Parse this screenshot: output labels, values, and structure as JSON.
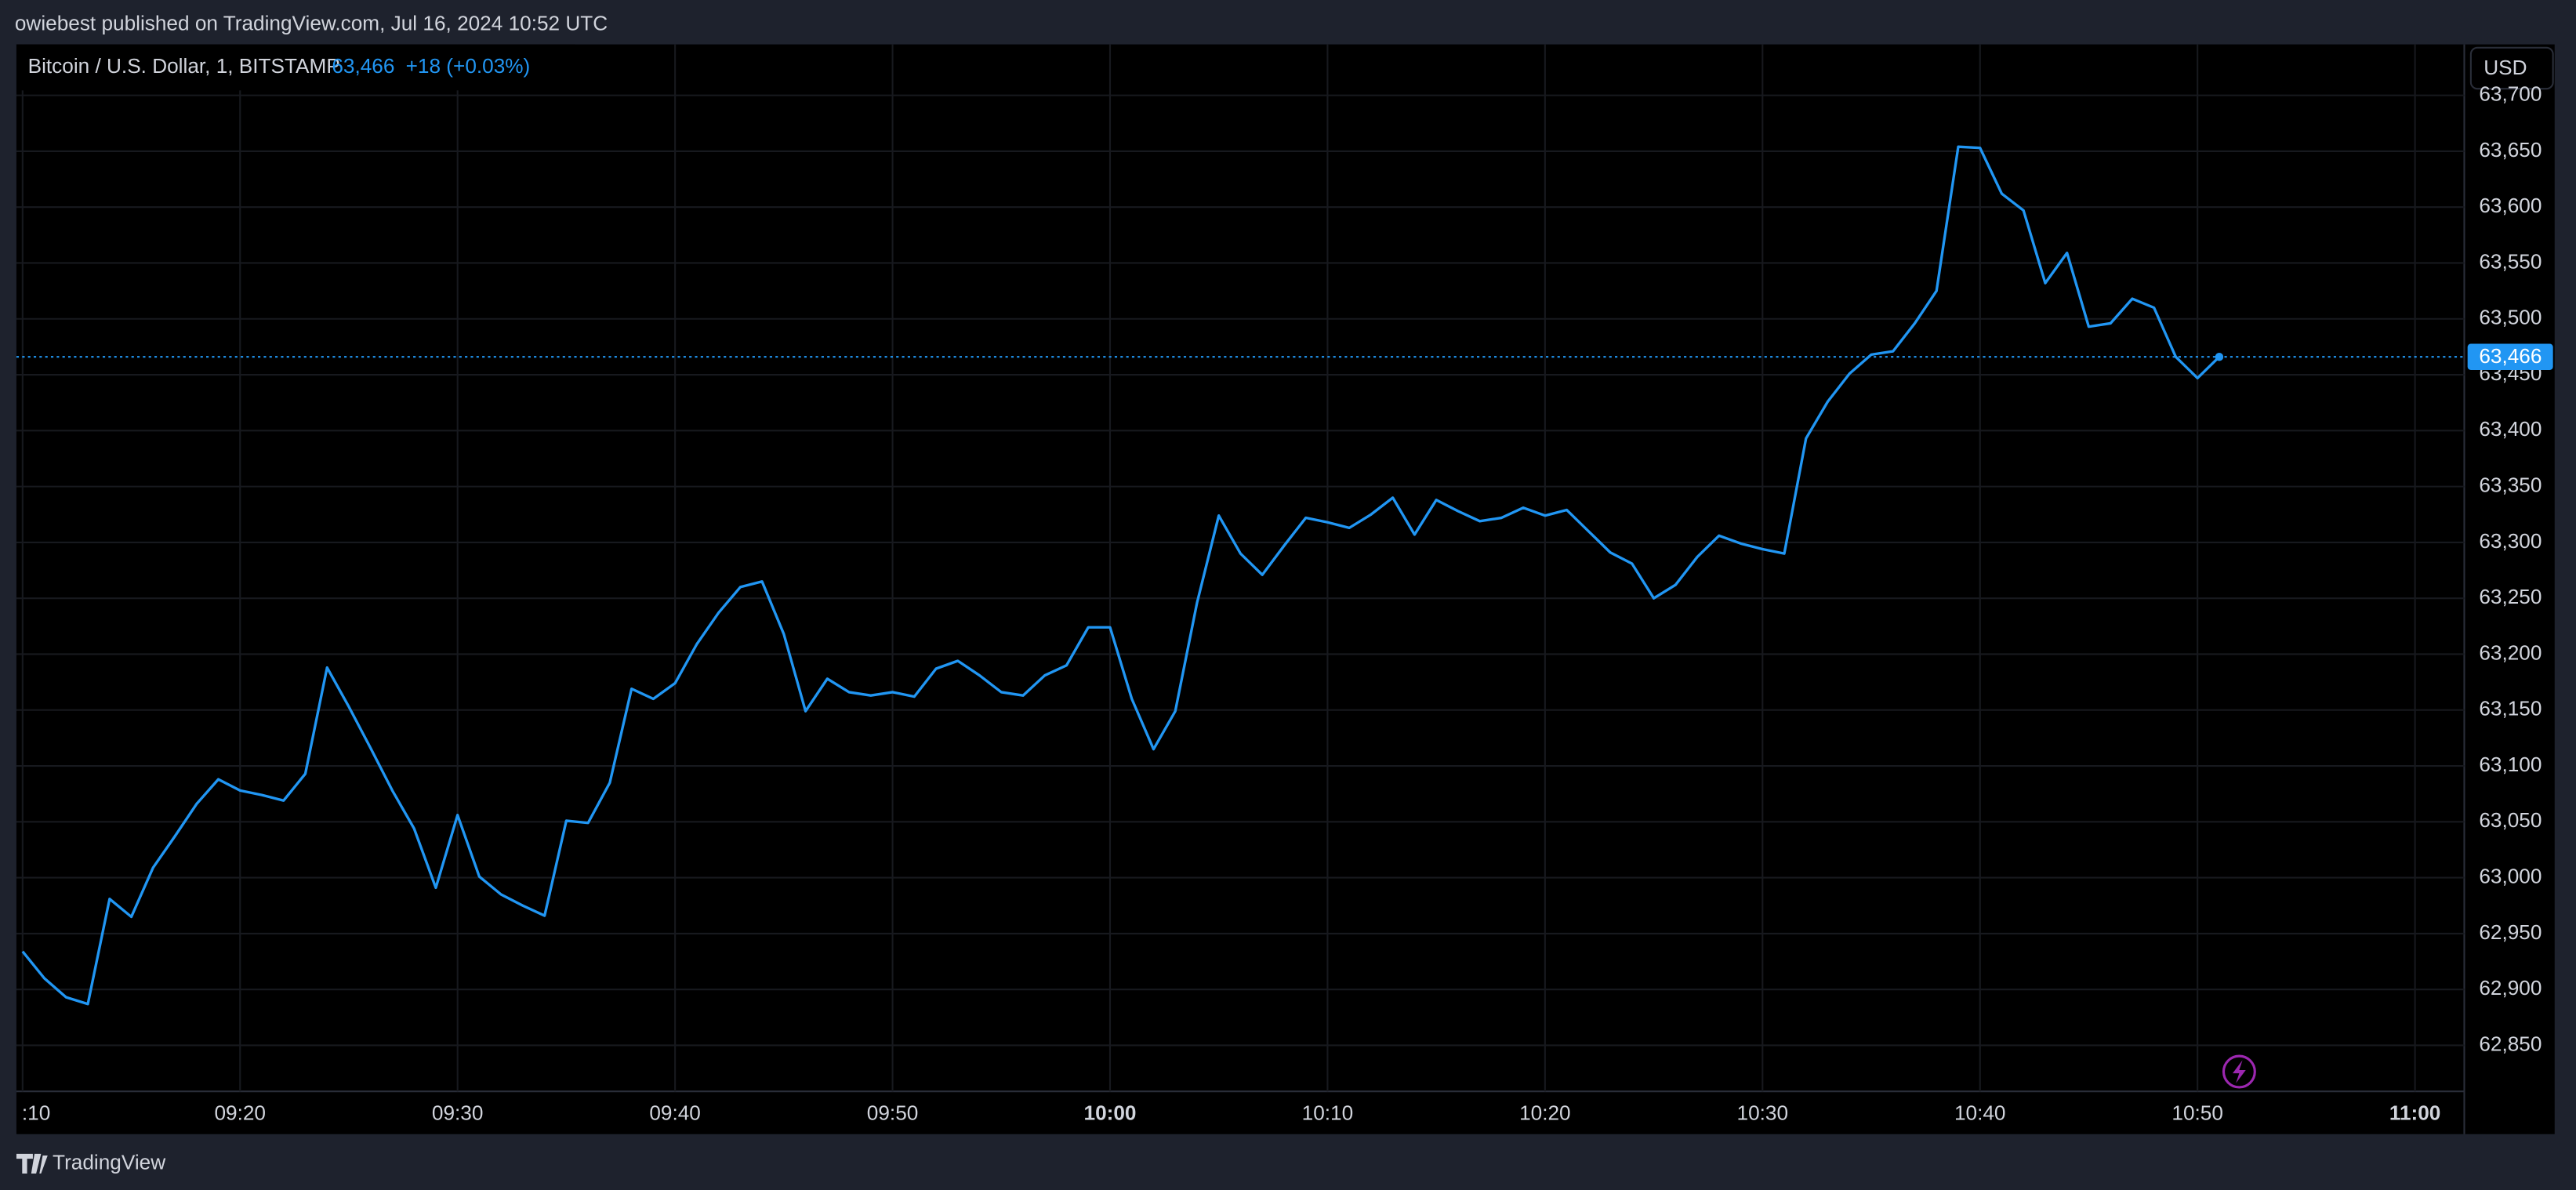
{
  "header": {
    "text": "owiebest published on TradingView.com, Jul 16, 2024 10:52 UTC"
  },
  "footer": {
    "brand": "TradingView"
  },
  "currency_button": "USD",
  "chart_data": {
    "type": "line",
    "symbol": "Bitcoin / U.S. Dollar, 1, BITSTAMP",
    "last_price": {
      "value": 63466,
      "label": "63,466"
    },
    "change": "+18 (+0.03%)",
    "x": [
      "09:10",
      "09:11",
      "09:12",
      "09:13",
      "09:14",
      "09:15",
      "09:16",
      "09:17",
      "09:18",
      "09:19",
      "09:20",
      "09:21",
      "09:22",
      "09:23",
      "09:24",
      "09:25",
      "09:26",
      "09:27",
      "09:28",
      "09:29",
      "09:30",
      "09:31",
      "09:32",
      "09:33",
      "09:34",
      "09:35",
      "09:36",
      "09:37",
      "09:38",
      "09:39",
      "09:40",
      "09:41",
      "09:42",
      "09:43",
      "09:44",
      "09:45",
      "09:46",
      "09:47",
      "09:48",
      "09:49",
      "09:50",
      "09:51",
      "09:52",
      "09:53",
      "09:54",
      "09:55",
      "09:56",
      "09:57",
      "09:58",
      "09:59",
      "10:00",
      "10:01",
      "10:02",
      "10:03",
      "10:04",
      "10:05",
      "10:06",
      "10:07",
      "10:08",
      "10:09",
      "10:10",
      "10:11",
      "10:12",
      "10:13",
      "10:14",
      "10:15",
      "10:16",
      "10:17",
      "10:18",
      "10:19",
      "10:20",
      "10:21",
      "10:22",
      "10:23",
      "10:24",
      "10:25",
      "10:26",
      "10:27",
      "10:28",
      "10:29",
      "10:30",
      "10:31",
      "10:32",
      "10:33",
      "10:34",
      "10:35",
      "10:36",
      "10:37",
      "10:38",
      "10:39",
      "10:40",
      "10:41",
      "10:42",
      "10:43",
      "10:44",
      "10:45",
      "10:46",
      "10:47",
      "10:48",
      "10:49",
      "10:50",
      "10:51"
    ],
    "series": [
      {
        "name": "BTCUSD",
        "color": "#2196f3",
        "values": [
          62934,
          62910,
          62893,
          62887,
          62981,
          62965,
          63009,
          63037,
          63066,
          63088,
          63078,
          63074,
          63069,
          63093,
          63188,
          63153,
          63116,
          63078,
          63044,
          62991,
          63056,
          63001,
          62985,
          62975,
          62966,
          63051,
          63049,
          63085,
          63169,
          63160,
          63174,
          63209,
          63237,
          63260,
          63265,
          63218,
          63149,
          63178,
          63166,
          63163,
          63166,
          63162,
          63187,
          63194,
          63181,
          63166,
          63163,
          63181,
          63190,
          63224,
          63224,
          63160,
          63115,
          63149,
          63246,
          63324,
          63290,
          63271,
          63297,
          63322,
          63318,
          63313,
          63325,
          63340,
          63307,
          63338,
          63328,
          63319,
          63322,
          63331,
          63324,
          63329,
          63310,
          63291,
          63281,
          63250,
          63262,
          63287,
          63306,
          63299,
          63294,
          63290,
          63393,
          63426,
          63451,
          63468,
          63471,
          63496,
          63525,
          63654,
          63653,
          63612,
          63597,
          63532,
          63559,
          63493,
          63496,
          63518,
          63510,
          63466,
          63447,
          63466
        ]
      }
    ],
    "xlim": [
      "09:09:43",
      "11:02:16"
    ],
    "xticks": [
      {
        "value": "09:10",
        "label": ":10"
      },
      "09:20",
      "09:30",
      "09:40",
      "09:50",
      "10:00",
      "10:10",
      "10:20",
      "10:30",
      "10:40",
      "10:50",
      "11:00"
    ],
    "ylim": [
      62808.8,
      63745.6
    ],
    "yticks": [
      {
        "value": 62850,
        "label": "62,850"
      },
      {
        "value": 62900,
        "label": "62,900"
      },
      {
        "value": 62950,
        "label": "62,950"
      },
      {
        "value": 63000,
        "label": "63,000"
      },
      {
        "value": 63050,
        "label": "63,050"
      },
      {
        "value": 63100,
        "label": "63,100"
      },
      {
        "value": 63150,
        "label": "63,150"
      },
      {
        "value": 63200,
        "label": "63,200"
      },
      {
        "value": 63250,
        "label": "63,250"
      },
      {
        "value": 63300,
        "label": "63,300"
      },
      {
        "value": 63350,
        "label": "63,350"
      },
      {
        "value": 63400,
        "label": "63,400"
      },
      {
        "value": 63450,
        "label": "63,450"
      },
      {
        "value": 63500,
        "label": "63,500"
      },
      {
        "value": 63550,
        "label": "63,550"
      },
      {
        "value": 63600,
        "label": "63,600"
      },
      {
        "value": 63650,
        "label": "63,650"
      },
      {
        "value": 63700,
        "label": "63,700"
      }
    ],
    "grid": true
  }
}
